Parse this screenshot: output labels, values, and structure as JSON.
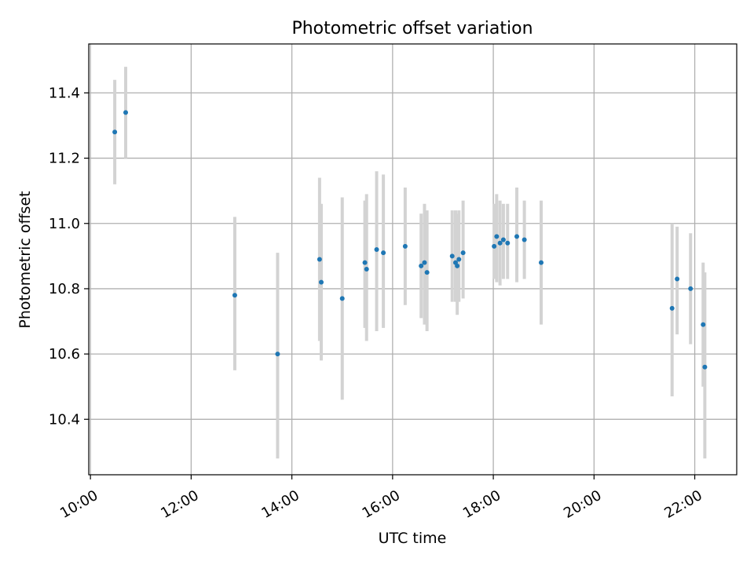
{
  "chart_data": {
    "type": "scatter",
    "title": "Photometric offset variation",
    "xlabel": "UTC time",
    "ylabel": "Photometric offset",
    "xlim": [
      "09:58",
      "22:50"
    ],
    "ylim": [
      10.23,
      11.55
    ],
    "x_ticks": [
      "10:00",
      "12:00",
      "14:00",
      "16:00",
      "18:00",
      "20:00",
      "22:00"
    ],
    "y_ticks": [
      "10.4",
      "10.6",
      "10.8",
      "11.0",
      "11.2",
      "11.4"
    ],
    "grid": true,
    "marker_color": "#1f77b4",
    "errorbar_color": "#d3d3d3",
    "points": [
      {
        "t": "10:29",
        "y": 11.28,
        "lo": 11.12,
        "hi": 11.44
      },
      {
        "t": "10:42",
        "y": 11.34,
        "lo": 11.2,
        "hi": 11.48
      },
      {
        "t": "12:52",
        "y": 10.78,
        "lo": 10.55,
        "hi": 11.02
      },
      {
        "t": "13:43",
        "y": 10.6,
        "lo": 10.28,
        "hi": 10.91
      },
      {
        "t": "14:33",
        "y": 10.89,
        "lo": 10.64,
        "hi": 11.14
      },
      {
        "t": "14:35",
        "y": 10.82,
        "lo": 10.58,
        "hi": 11.06
      },
      {
        "t": "15:00",
        "y": 10.77,
        "lo": 10.46,
        "hi": 11.08
      },
      {
        "t": "15:27",
        "y": 10.88,
        "lo": 10.68,
        "hi": 11.07
      },
      {
        "t": "15:29",
        "y": 10.86,
        "lo": 10.64,
        "hi": 11.09
      },
      {
        "t": "15:41",
        "y": 10.92,
        "lo": 10.67,
        "hi": 11.16
      },
      {
        "t": "15:49",
        "y": 10.91,
        "lo": 10.68,
        "hi": 11.15
      },
      {
        "t": "16:15",
        "y": 10.93,
        "lo": 10.75,
        "hi": 11.11
      },
      {
        "t": "16:34",
        "y": 10.87,
        "lo": 10.71,
        "hi": 11.03
      },
      {
        "t": "16:38",
        "y": 10.88,
        "lo": 10.69,
        "hi": 11.06
      },
      {
        "t": "16:41",
        "y": 10.85,
        "lo": 10.67,
        "hi": 11.04
      },
      {
        "t": "17:11",
        "y": 10.9,
        "lo": 10.76,
        "hi": 11.04
      },
      {
        "t": "17:15",
        "y": 10.88,
        "lo": 10.76,
        "hi": 11.04
      },
      {
        "t": "17:17",
        "y": 10.87,
        "lo": 10.72,
        "hi": 11.03
      },
      {
        "t": "17:19",
        "y": 10.89,
        "lo": 10.76,
        "hi": 11.04
      },
      {
        "t": "17:24",
        "y": 10.91,
        "lo": 10.77,
        "hi": 11.07
      },
      {
        "t": "18:01",
        "y": 10.93,
        "lo": 10.83,
        "hi": 11.06
      },
      {
        "t": "18:04",
        "y": 10.96,
        "lo": 10.82,
        "hi": 11.09
      },
      {
        "t": "18:08",
        "y": 10.94,
        "lo": 10.81,
        "hi": 11.07
      },
      {
        "t": "18:12",
        "y": 10.95,
        "lo": 10.83,
        "hi": 11.06
      },
      {
        "t": "18:17",
        "y": 10.94,
        "lo": 10.83,
        "hi": 11.06
      },
      {
        "t": "18:28",
        "y": 10.96,
        "lo": 10.82,
        "hi": 11.11
      },
      {
        "t": "18:37",
        "y": 10.95,
        "lo": 10.83,
        "hi": 11.07
      },
      {
        "t": "18:57",
        "y": 10.88,
        "lo": 10.69,
        "hi": 11.07
      },
      {
        "t": "21:33",
        "y": 10.74,
        "lo": 10.47,
        "hi": 11.0
      },
      {
        "t": "21:39",
        "y": 10.83,
        "lo": 10.66,
        "hi": 10.99
      },
      {
        "t": "21:55",
        "y": 10.8,
        "lo": 10.63,
        "hi": 10.97
      },
      {
        "t": "22:10",
        "y": 10.69,
        "lo": 10.5,
        "hi": 10.88
      },
      {
        "t": "22:12",
        "y": 10.56,
        "lo": 10.28,
        "hi": 10.85
      }
    ]
  }
}
